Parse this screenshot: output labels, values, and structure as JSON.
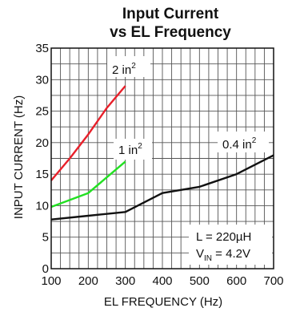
{
  "chart_data": {
    "type": "line",
    "title_line1": "Input Current",
    "title_line2": "vs EL Frequency",
    "xlabel": "EL FREQUENCY (Hz)",
    "ylabel": "INPUT CURRENT (Hz)",
    "xlim": [
      100,
      700
    ],
    "ylim": [
      0,
      35
    ],
    "xticks": [
      100,
      200,
      300,
      400,
      500,
      600,
      700
    ],
    "yticks": [
      0,
      5,
      10,
      15,
      20,
      25,
      30,
      35
    ],
    "grid": true,
    "series": [
      {
        "name": "2 in",
        "name_sup": "2",
        "color": "#e8202a",
        "x": [
          100,
          150,
          200,
          250,
          300
        ],
        "y": [
          14,
          17.5,
          21.3,
          25.5,
          29
        ]
      },
      {
        "name": "1 in",
        "name_sup": "2",
        "color": "#22e022",
        "x": [
          100,
          200,
          250,
          300
        ],
        "y": [
          9.8,
          12,
          14.5,
          17
        ]
      },
      {
        "name": "0.4 in",
        "name_sup": "2",
        "color": "#111111",
        "x": [
          100,
          200,
          300,
          400,
          500,
          600,
          700
        ],
        "y": [
          7.8,
          8.4,
          9,
          12,
          13,
          15,
          18
        ]
      }
    ],
    "annotation": {
      "line1": "L = 220µH",
      "line2_prefix": "V",
      "line2_sub": "IN",
      "line2_suffix": " = 4.2V"
    }
  }
}
